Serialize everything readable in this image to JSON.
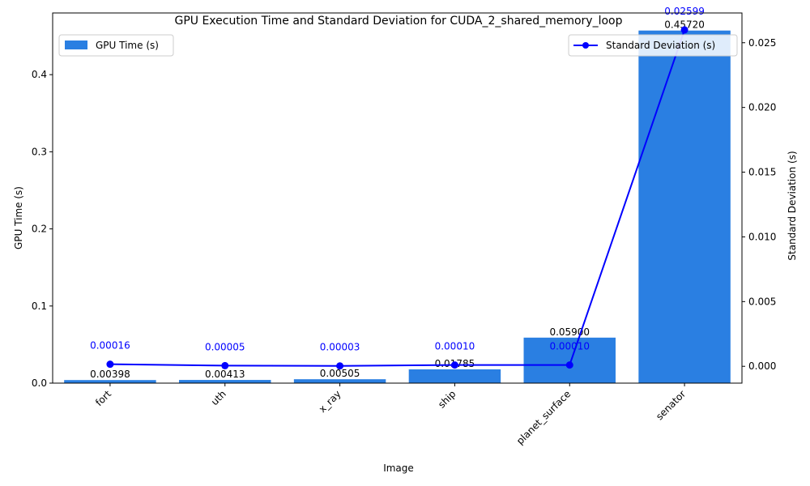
{
  "chart_data": {
    "type": "bar",
    "title": "GPU Execution Time and Standard Deviation for CUDA_2_shared_memory_loop",
    "xlabel": "Image",
    "ylabel": "GPU Time (s)",
    "y2label": "Standard Deviation (s)",
    "categories": [
      "fort",
      "uth",
      "x_ray",
      "ship",
      "planet_surface",
      "senator"
    ],
    "series": [
      {
        "name": "GPU Time (s)",
        "kind": "bar",
        "axis": "left",
        "color": "#2a7fe2",
        "values": [
          0.00398,
          0.00413,
          0.00505,
          0.01785,
          0.059,
          0.4572
        ],
        "labels": [
          "0.00398",
          "0.00413",
          "0.00505",
          "0.01785",
          "0.05900",
          "0.45720"
        ]
      },
      {
        "name": "Standard Deviation (s)",
        "kind": "line",
        "axis": "right",
        "color": "#0000ff",
        "values": [
          0.00016,
          5e-05,
          3e-05,
          0.0001,
          0.0001,
          0.02599
        ],
        "labels": [
          "0.00016",
          "0.00005",
          "0.00003",
          "0.00010",
          "0.00010",
          "0.02599"
        ]
      }
    ],
    "ylim": [
      0,
      0.48
    ],
    "y2lim": [
      -0.0013,
      0.0273
    ],
    "yticks": [
      0.0,
      0.1,
      0.2,
      0.3,
      0.4
    ],
    "ytick_labels": [
      "0.0",
      "0.1",
      "0.2",
      "0.3",
      "0.4"
    ],
    "y2ticks": [
      0.0,
      0.005,
      0.01,
      0.015,
      0.02,
      0.025
    ],
    "y2tick_labels": [
      "0.000",
      "0.005",
      "0.010",
      "0.015",
      "0.020",
      "0.025"
    ],
    "legend_left": "upper-left",
    "legend_right": "upper-right",
    "grid": false
  }
}
